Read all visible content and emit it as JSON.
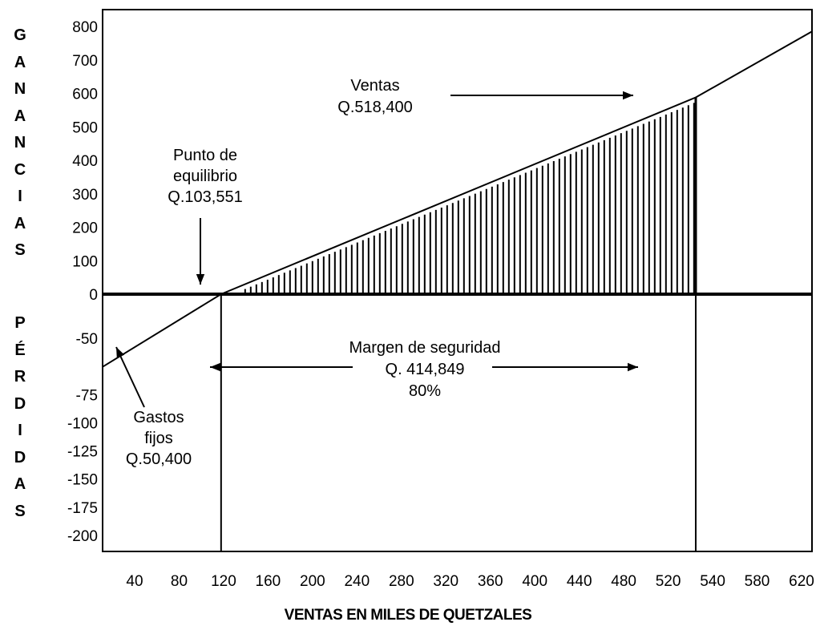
{
  "chart_data": {
    "type": "line",
    "title": "",
    "xlabel": "VENTAS EN MILES DE QUETZALES",
    "ylabel_positive": "GANANCIAS",
    "ylabel_negative": "PÉRDIDAS",
    "x_ticks": [
      40,
      80,
      120,
      160,
      200,
      240,
      280,
      320,
      360,
      400,
      440,
      480,
      520,
      540,
      580,
      620
    ],
    "y_ticks_positive": [
      800,
      700,
      600,
      500,
      400,
      300,
      200,
      100,
      0
    ],
    "y_ticks_negative": [
      -50,
      -75,
      -100,
      -125,
      -150,
      -175,
      -200
    ],
    "series": [
      {
        "name": "Ventas",
        "points": [
          {
            "x": 0,
            "y": -50.4
          },
          {
            "x": 103.551,
            "y": 0
          },
          {
            "x": 518.4,
            "y": 588
          },
          {
            "x": 620,
            "y": 785
          }
        ]
      }
    ],
    "shaded_region": {
      "x_from": 103.551,
      "x_to": 518.4,
      "pattern": "vertical-hatch"
    },
    "vertical_lines_x": [
      103.551,
      518.4
    ],
    "annotations": {
      "ventas": [
        "Ventas",
        "Q.518,400"
      ],
      "punto_equilibrio": [
        "Punto de",
        "equilibrio",
        "Q.103,551"
      ],
      "margen": [
        "Margen de seguridad",
        "Q. 414,849",
        "80%"
      ],
      "gastos_fijos": [
        "Gastos",
        "fijos",
        "Q.50,400"
      ]
    },
    "grid": false,
    "legend": "none"
  }
}
